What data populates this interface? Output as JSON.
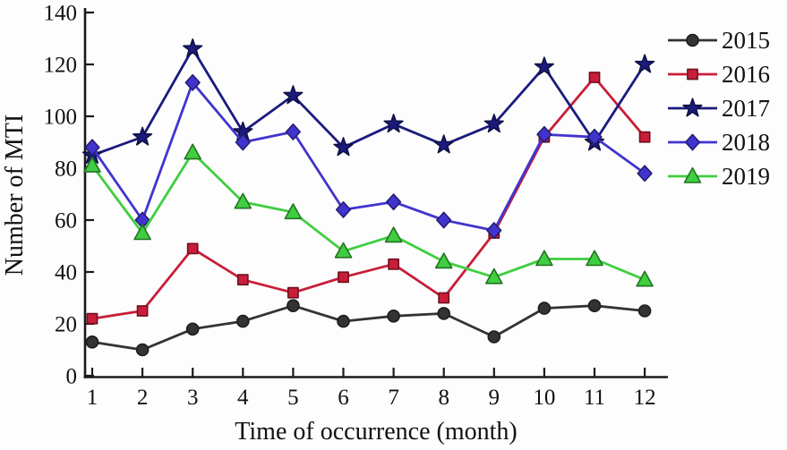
{
  "figure": {
    "background": "#fdfdfd",
    "axis_color": "#1a1a1a"
  },
  "chart_data": {
    "type": "line",
    "title": "",
    "xlabel": "Time of occurrence (month)",
    "ylabel": "Number of MTI",
    "x": [
      1,
      2,
      3,
      4,
      5,
      6,
      7,
      8,
      9,
      10,
      11,
      12
    ],
    "xtick_labels": [
      "1",
      "2",
      "3",
      "4",
      "5",
      "6",
      "7",
      "8",
      "9",
      "10",
      "11",
      "12"
    ],
    "yticks": [
      0,
      20,
      40,
      60,
      80,
      100,
      120,
      140
    ],
    "ylim": [
      0,
      140
    ],
    "xlim": [
      1,
      12
    ],
    "grid": false,
    "legend_position": "top-right",
    "series": [
      {
        "name": "2015",
        "color": "#333333",
        "marker": "circle",
        "values": [
          13,
          10,
          18,
          21,
          27,
          21,
          23,
          24,
          15,
          26,
          27,
          25
        ]
      },
      {
        "name": "2016",
        "color": "#c81e3a",
        "marker": "square",
        "values": [
          22,
          25,
          49,
          37,
          32,
          38,
          43,
          30,
          55,
          92,
          115,
          92
        ]
      },
      {
        "name": "2017",
        "color": "#1b1b7e",
        "marker": "star",
        "values": [
          85,
          92,
          126,
          94,
          108,
          88,
          97,
          89,
          97,
          119,
          90,
          120
        ]
      },
      {
        "name": "2018",
        "color": "#4134ce",
        "marker": "diamond",
        "values": [
          88,
          60,
          113,
          90,
          94,
          64,
          67,
          60,
          56,
          93,
          92,
          78
        ]
      },
      {
        "name": "2019",
        "color": "#3fce3f",
        "marker": "triangle",
        "values": [
          81,
          55,
          86,
          67,
          63,
          48,
          54,
          44,
          38,
          45,
          45,
          37
        ]
      }
    ]
  }
}
